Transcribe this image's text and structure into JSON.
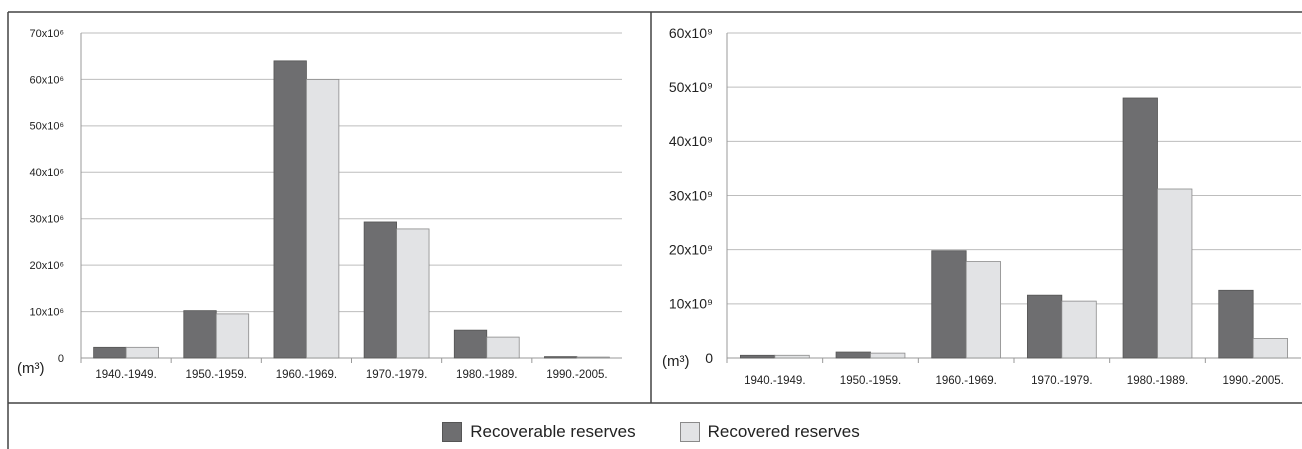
{
  "legend": {
    "recoverable": "Recoverable reserves",
    "recovered": "Recovered reserves"
  },
  "colors": {
    "recoverable": "#6e6e70",
    "recovered": "#e2e3e5"
  },
  "chart_data": [
    {
      "type": "bar",
      "categories": [
        "1940.-1949.",
        "1950.-1959.",
        "1960.-1969.",
        "1970.-1979.",
        "1980.-1989.",
        "1990.-2005."
      ],
      "series": [
        {
          "name": "Recoverable reserves",
          "values": [
            2.3,
            10.2,
            64,
            29.3,
            6,
            0.3
          ]
        },
        {
          "name": "Recovered reserves",
          "values": [
            2.3,
            9.5,
            60,
            27.8,
            4.5,
            0.2
          ]
        }
      ],
      "unit_label": "(m³)",
      "ylim": [
        0,
        70
      ],
      "yticks": [
        "0",
        "10x10⁶",
        "20x10⁶",
        "30x10⁶",
        "40x10⁶",
        "50x10⁶",
        "60x10⁶",
        "70x10⁶"
      ],
      "grid": true,
      "legend": "bottom-center"
    },
    {
      "type": "bar",
      "categories": [
        "1940.-1949.",
        "1950.-1959.",
        "1960.-1969.",
        "1970.-1979.",
        "1980.-1989.",
        "1990.-2005."
      ],
      "series": [
        {
          "name": "Recoverable reserves",
          "values": [
            0.5,
            1.1,
            19.8,
            11.6,
            48,
            12.5
          ]
        },
        {
          "name": "Recovered reserves",
          "values": [
            0.5,
            0.9,
            17.8,
            10.5,
            31.2,
            3.6
          ]
        }
      ],
      "unit_label": "(m³)",
      "ylim": [
        0,
        60
      ],
      "yticks": [
        "0",
        "10x10⁹",
        "20x10⁹",
        "30x10⁹",
        "40x10⁹",
        "50x10⁹",
        "60x10⁹"
      ],
      "grid": true,
      "legend": "bottom-center"
    }
  ]
}
